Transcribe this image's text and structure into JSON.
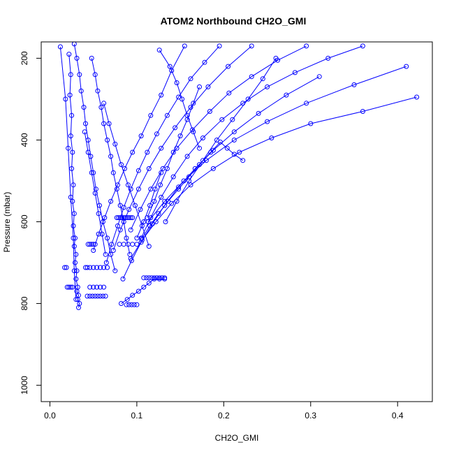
{
  "chart_data": {
    "type": "line",
    "title": "ATOM2 Northbound CH2O_GMI",
    "xlabel": "CH2O_GMI",
    "ylabel": "Pressure (mbar)",
    "xlim": [
      -0.01,
      0.44
    ],
    "ylim": [
      1040,
      160
    ],
    "y_reversed": true,
    "x_ticks": [
      0.0,
      0.1,
      0.2,
      0.3,
      0.4
    ],
    "x_tick_labels": [
      "0.0",
      "0.1",
      "0.2",
      "0.3",
      "0.4"
    ],
    "y_ticks": [
      200,
      400,
      600,
      800,
      1000
    ],
    "y_tick_labels": [
      "200",
      "400",
      "600",
      "800",
      "1000"
    ],
    "grid": false,
    "legend": "none",
    "series_color": "#0000ff",
    "marker": "open-circle",
    "series": [
      {
        "x": [
          0.022,
          0.024,
          0.023,
          0.025,
          0.024,
          0.026,
          0.025,
          0.027,
          0.026,
          0.028,
          0.027,
          0.029,
          0.028,
          0.03,
          0.029,
          0.031,
          0.03,
          0.032,
          0.031,
          0.033,
          0.032,
          0.034,
          0.033
        ],
        "y": [
          190,
          240,
          290,
          340,
          390,
          430,
          470,
          510,
          550,
          580,
          610,
          640,
          660,
          680,
          700,
          720,
          740,
          760,
          770,
          780,
          790,
          800,
          810
        ]
      },
      {
        "x": [
          0.012,
          0.018,
          0.021,
          0.024,
          0.027,
          0.028,
          0.03
        ],
        "y": [
          172,
          300,
          420,
          540,
          640,
          720,
          790
        ]
      },
      {
        "x": [
          0.028,
          0.031,
          0.034,
          0.036,
          0.039,
          0.041,
          0.044,
          0.047,
          0.05,
          0.053,
          0.057,
          0.061,
          0.066,
          0.07,
          0.075
        ],
        "y": [
          165,
          200,
          240,
          280,
          320,
          360,
          400,
          440,
          480,
          520,
          560,
          600,
          640,
          680,
          720
        ]
      },
      {
        "x": [
          0.048,
          0.052,
          0.055,
          0.059,
          0.062,
          0.066,
          0.07,
          0.073,
          0.077,
          0.081,
          0.085,
          0.088,
          0.092
        ],
        "y": [
          200,
          240,
          280,
          320,
          360,
          400,
          440,
          480,
          520,
          560,
          600,
          640,
          680
        ]
      },
      {
        "x": [
          0.155,
          0.14,
          0.128,
          0.116,
          0.105,
          0.095,
          0.086,
          0.078,
          0.07,
          0.063,
          0.056,
          0.05
        ],
        "y": [
          170,
          230,
          290,
          340,
          390,
          430,
          470,
          510,
          550,
          590,
          630,
          670
        ]
      },
      {
        "x": [
          0.232,
          0.205,
          0.182,
          0.162,
          0.144,
          0.128,
          0.114,
          0.102,
          0.091,
          0.081,
          0.073
        ],
        "y": [
          170,
          220,
          270,
          320,
          370,
          420,
          470,
          520,
          570,
          620,
          670
        ]
      },
      {
        "x": [
          0.31,
          0.272,
          0.24,
          0.212,
          0.188,
          0.167,
          0.148,
          0.132,
          0.118,
          0.105,
          0.094,
          0.084
        ],
        "y": [
          245,
          290,
          335,
          380,
          425,
          470,
          515,
          560,
          605,
          650,
          695,
          740
        ]
      },
      {
        "x": [
          0.422,
          0.36,
          0.3,
          0.255,
          0.218,
          0.188,
          0.162,
          0.14,
          0.122,
          0.106,
          0.093
        ],
        "y": [
          295,
          330,
          360,
          395,
          430,
          470,
          510,
          555,
          600,
          645,
          690
        ]
      },
      {
        "x": [
          0.41,
          0.35,
          0.295,
          0.25,
          0.212,
          0.18,
          0.154,
          0.132,
          0.113
        ],
        "y": [
          220,
          265,
          310,
          355,
          400,
          450,
          500,
          550,
          600
        ]
      },
      {
        "x": [
          0.36,
          0.32,
          0.282,
          0.25,
          0.222,
          0.198,
          0.176,
          0.158,
          0.142,
          0.128,
          0.116,
          0.105
        ],
        "y": [
          170,
          200,
          235,
          270,
          310,
          350,
          395,
          440,
          490,
          540,
          590,
          640
        ]
      },
      {
        "x": [
          0.295,
          0.262,
          0.232,
          0.206,
          0.184,
          0.164,
          0.146,
          0.13,
          0.116,
          0.104,
          0.093
        ],
        "y": [
          170,
          205,
          245,
          285,
          330,
          375,
          420,
          470,
          520,
          570,
          620
        ]
      },
      {
        "x": [
          0.195,
          0.178,
          0.162,
          0.148,
          0.135,
          0.123,
          0.112,
          0.102,
          0.093,
          0.085,
          0.078,
          0.071,
          0.065
        ],
        "y": [
          170,
          210,
          250,
          295,
          340,
          385,
          430,
          475,
          520,
          565,
          610,
          655,
          700
        ]
      },
      {
        "x": [
          0.222,
          0.212,
          0.204,
          0.196,
          0.185,
          0.172,
          0.16,
          0.148,
          0.136,
          0.125,
          0.115,
          0.106
        ],
        "y": [
          450,
          435,
          420,
          405,
          430,
          460,
          490,
          520,
          550,
          580,
          610,
          640
        ]
      },
      {
        "x": [
          0.172,
          0.165,
          0.158,
          0.15,
          0.142,
          0.135,
          0.127,
          0.12,
          0.112
        ],
        "y": [
          270,
          310,
          350,
          390,
          430,
          470,
          510,
          550,
          590
        ]
      },
      {
        "x": [
          0.082,
          0.089,
          0.095,
          0.102,
          0.108,
          0.114,
          0.12,
          0.126,
          0.132
        ],
        "y": [
          800,
          790,
          780,
          770,
          760,
          750,
          740,
          740,
          740
        ]
      },
      {
        "x": [
          0.1,
          0.108,
          0.115,
          0.121,
          0.128
        ],
        "y": [
          640,
          600,
          560,
          520,
          480
        ]
      },
      {
        "x": [
          0.062,
          0.068,
          0.075,
          0.082,
          0.09,
          0.098,
          0.106,
          0.114
        ],
        "y": [
          310,
          360,
          410,
          460,
          510,
          560,
          610,
          660
        ]
      },
      {
        "x": [
          0.04,
          0.044,
          0.048,
          0.052,
          0.056,
          0.06,
          0.064
        ],
        "y": [
          380,
          430,
          480,
          530,
          580,
          630,
          680
        ]
      },
      {
        "x": [
          0.126,
          0.138,
          0.146,
          0.152,
          0.158,
          0.165,
          0.172
        ],
        "y": [
          180,
          220,
          260,
          300,
          340,
          380,
          420
        ]
      },
      {
        "x": [
          0.26,
          0.245,
          0.228,
          0.21,
          0.192,
          0.176,
          0.16,
          0.146,
          0.133
        ],
        "y": [
          200,
          250,
          300,
          350,
          400,
          450,
          500,
          550,
          600
        ]
      }
    ],
    "flat_clusters": [
      {
        "y": 590,
        "x": [
          0.077,
          0.079,
          0.081,
          0.083,
          0.085,
          0.087,
          0.089,
          0.091,
          0.093,
          0.095
        ]
      },
      {
        "y": 655,
        "x": [
          0.044,
          0.046,
          0.048,
          0.05,
          0.052,
          0.08,
          0.085,
          0.09,
          0.095,
          0.1
        ]
      },
      {
        "y": 712,
        "x": [
          0.017,
          0.019,
          0.041,
          0.043,
          0.046,
          0.05,
          0.054,
          0.058,
          0.062,
          0.066
        ]
      },
      {
        "y": 737,
        "x": [
          0.108,
          0.111,
          0.114,
          0.117,
          0.12,
          0.123,
          0.126,
          0.129,
          0.132
        ]
      },
      {
        "y": 760,
        "x": [
          0.02,
          0.022,
          0.024,
          0.026,
          0.046,
          0.05,
          0.054,
          0.058,
          0.062
        ]
      },
      {
        "y": 782,
        "x": [
          0.043,
          0.046,
          0.049,
          0.052,
          0.055,
          0.058,
          0.061,
          0.064
        ]
      },
      {
        "y": 803,
        "x": [
          0.088,
          0.091,
          0.094,
          0.097,
          0.1
        ]
      }
    ]
  }
}
